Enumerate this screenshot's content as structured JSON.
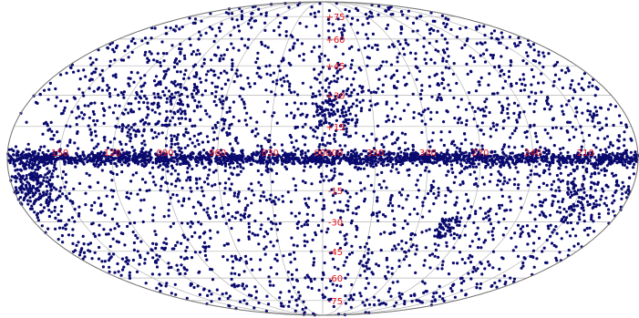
{
  "map": {
    "projection": "mollweide",
    "coordinate_frame": "galactic",
    "background_color": "#ffffff",
    "grid_color": "#b4b4b4",
    "source_color": "#0a0a6e",
    "label_color": "#e0101a",
    "longitude_labels": [
      {
        "text": "150",
        "lon": 150
      },
      {
        "text": "120",
        "lon": 120
      },
      {
        "text": "090",
        "lon": 90
      },
      {
        "text": "060",
        "lon": 60
      },
      {
        "text": "030",
        "lon": 30
      },
      {
        "text": "000",
        "lon": 0
      },
      {
        "text": "330",
        "lon": -30
      },
      {
        "text": "300",
        "lon": -60
      },
      {
        "text": "270",
        "lon": -90
      },
      {
        "text": "240",
        "lon": -120
      },
      {
        "text": "210",
        "lon": -150
      }
    ],
    "latitude_labels": [
      {
        "text": "+75",
        "lat": 75
      },
      {
        "text": "+60",
        "lat": 60
      },
      {
        "text": "+45",
        "lat": 45
      },
      {
        "text": "+30",
        "lat": 30
      },
      {
        "text": "+15",
        "lat": 15
      },
      {
        "text": "00",
        "lat": 0
      },
      {
        "text": "-15",
        "lat": -15
      },
      {
        "text": "-30",
        "lat": -30
      },
      {
        "text": "-45",
        "lat": -45
      },
      {
        "text": "-60",
        "lat": -60
      },
      {
        "text": "-75",
        "lat": -75
      }
    ],
    "source_distribution": {
      "total_sources": 5200,
      "galactic_plane_fraction": 0.32,
      "galactic_plane_lat_spread_deg": 1.6,
      "clusters": [
        {
          "name": "cluster-ophiuchus",
          "lon": -5,
          "lat": 20,
          "count": 110,
          "spread_deg": 7
        },
        {
          "name": "cluster-north-1",
          "lon": 95,
          "lat": 20,
          "count": 200,
          "spread_deg": 13
        },
        {
          "name": "cluster-orion",
          "lon": -150,
          "lat": -18,
          "count": 120,
          "spread_deg": 8
        },
        {
          "name": "cluster-magellanic",
          "lon": -78,
          "lat": -33,
          "count": 55,
          "spread_deg": 3
        },
        {
          "name": "cluster-anticenter",
          "lon": 170,
          "lat": -15,
          "count": 110,
          "spread_deg": 7
        },
        {
          "name": "cluster-taurus",
          "lon": 165,
          "lat": -10,
          "count": 80,
          "spread_deg": 5
        }
      ]
    }
  }
}
